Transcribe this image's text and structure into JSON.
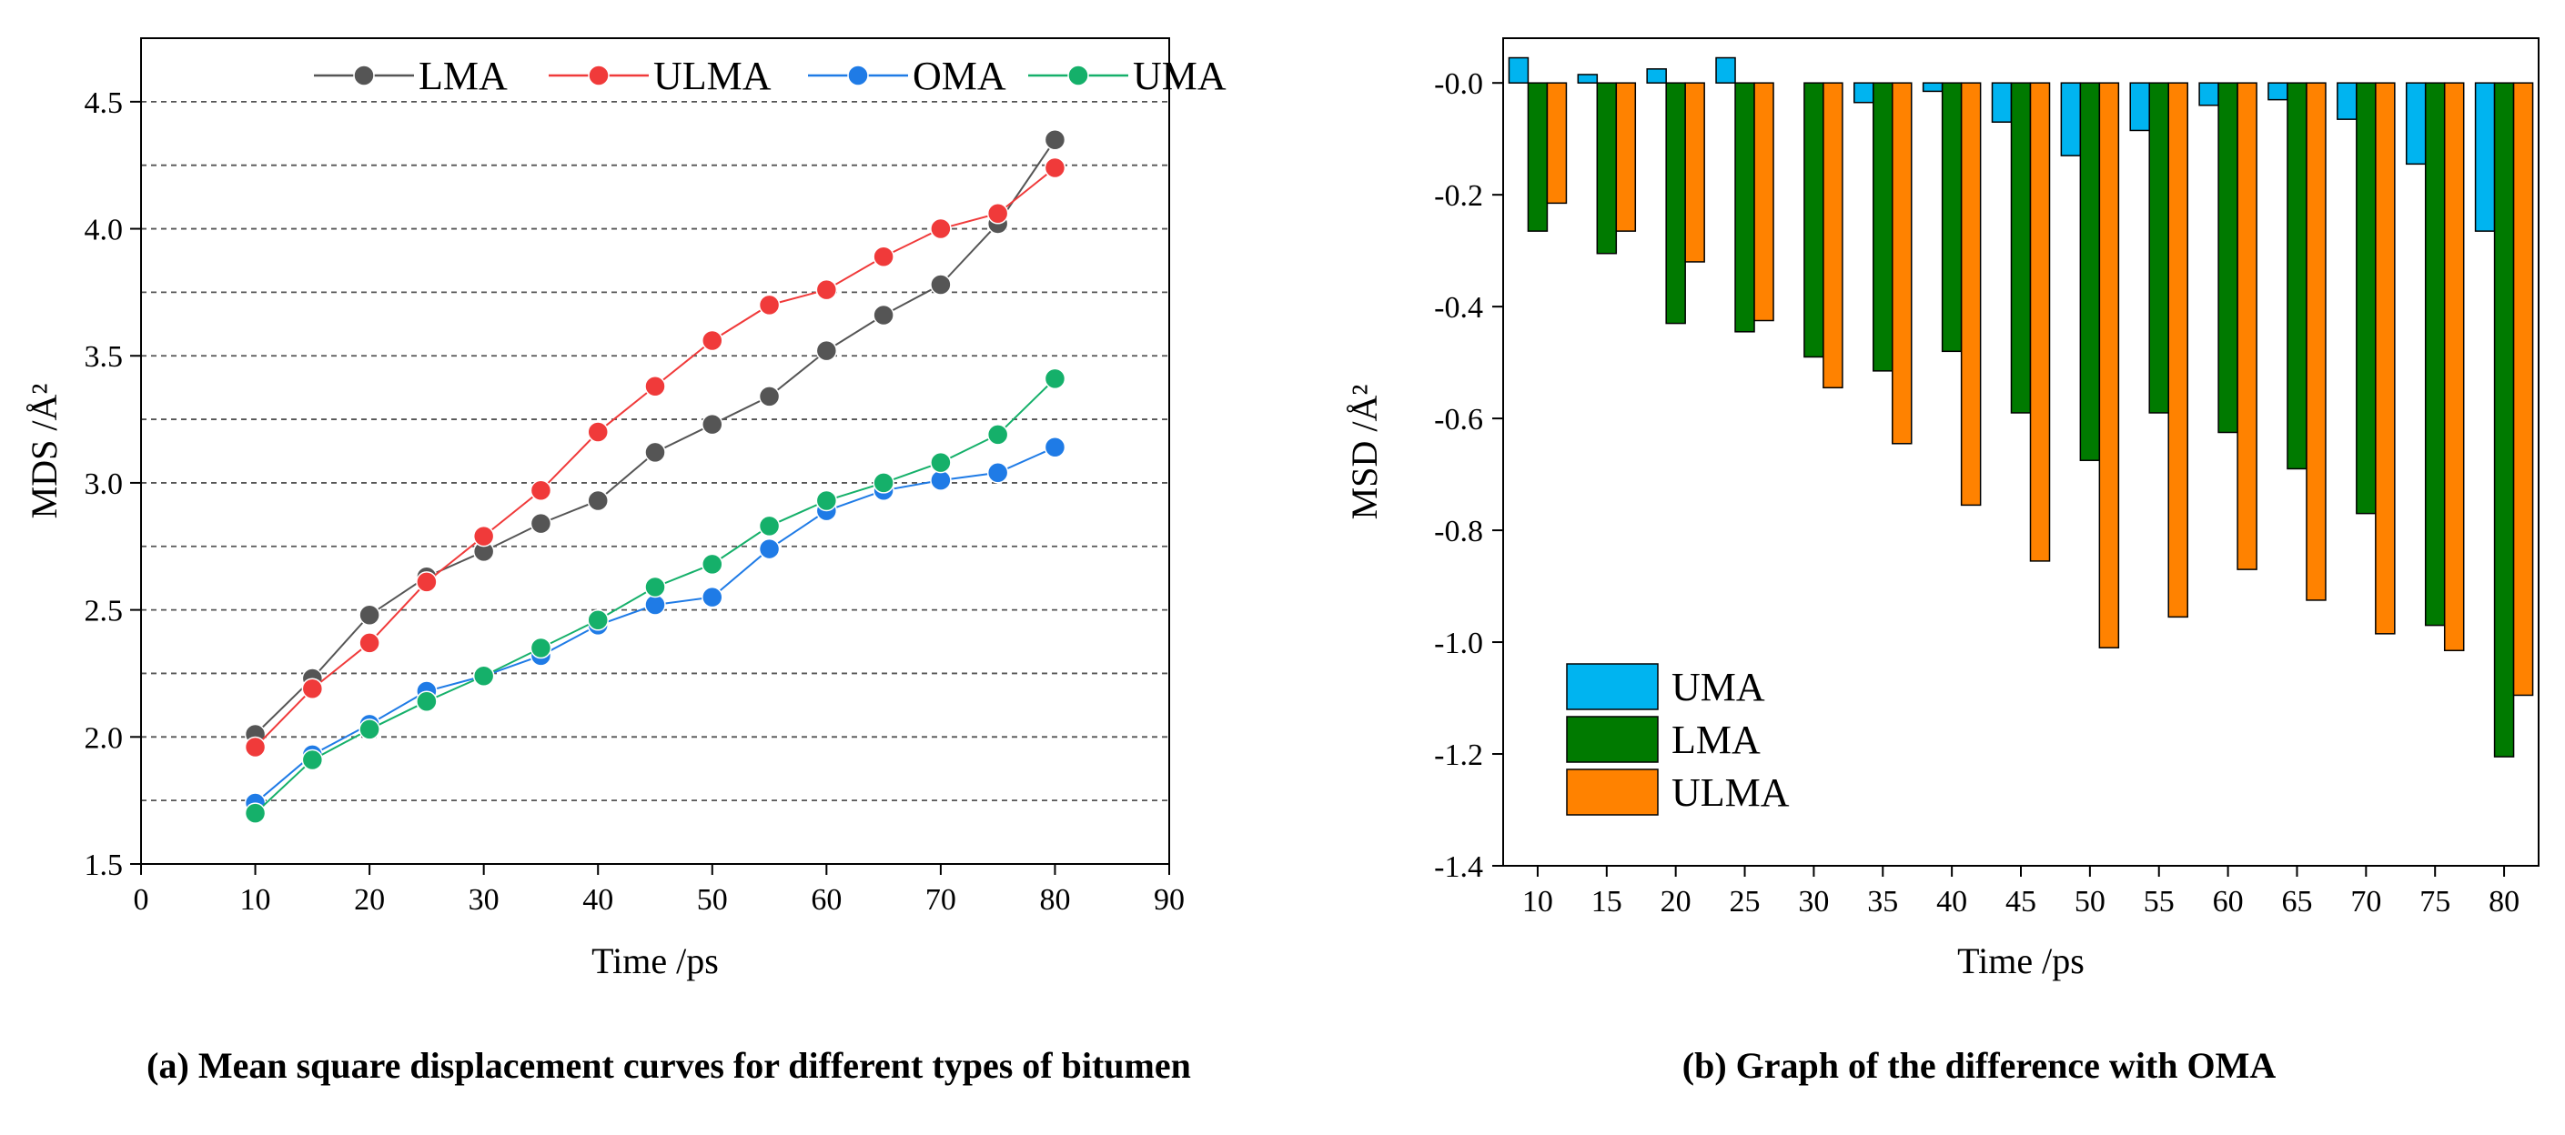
{
  "chart_data": [
    {
      "type": "line",
      "caption": "(a) Mean square displacement curves for different types of bitumen",
      "xlabel": "Time /ps",
      "ylabel": "MDS /Å²",
      "xlim": [
        0,
        90
      ],
      "ylim": [
        1.5,
        4.75
      ],
      "xticks": [
        "0",
        "10",
        "20",
        "30",
        "40",
        "50",
        "60",
        "70",
        "80",
        "90"
      ],
      "yticks": [
        "1.5",
        "2.0",
        "2.5",
        "3.0",
        "3.5",
        "4.0",
        "4.5"
      ],
      "grid": "horizontal dashed",
      "legend_position": "top",
      "x": [
        10,
        15,
        20,
        25,
        30,
        35,
        40,
        45,
        50,
        55,
        60,
        65,
        70,
        75,
        80
      ],
      "series": [
        {
          "name": "LMA",
          "color": "#555555",
          "values": [
            2.01,
            2.23,
            2.48,
            2.63,
            2.73,
            2.84,
            2.93,
            3.12,
            3.23,
            3.34,
            3.52,
            3.66,
            3.78,
            4.02,
            4.35
          ]
        },
        {
          "name": "ULMA",
          "color": "#f03a3a",
          "values": [
            1.96,
            2.19,
            2.37,
            2.61,
            2.79,
            2.97,
            3.2,
            3.38,
            3.56,
            3.7,
            3.76,
            3.89,
            4.0,
            4.06,
            4.24
          ]
        },
        {
          "name": "OMA",
          "color": "#1f7be6",
          "values": [
            1.74,
            1.93,
            2.05,
            2.18,
            2.24,
            2.32,
            2.44,
            2.52,
            2.55,
            2.74,
            2.89,
            2.97,
            3.01,
            3.04,
            3.14
          ]
        },
        {
          "name": "UMA",
          "color": "#15b06a",
          "values": [
            1.7,
            1.91,
            2.03,
            2.14,
            2.24,
            2.35,
            2.46,
            2.59,
            2.68,
            2.83,
            2.93,
            3.0,
            3.08,
            3.19,
            3.41
          ]
        }
      ]
    },
    {
      "type": "bar",
      "caption": "(b) Graph of the difference with OMA",
      "xlabel": "Time /ps",
      "ylabel": "MSD /Å²",
      "ylim": [
        -1.4,
        0.08
      ],
      "yticks": [
        "-0.0",
        "-0.2",
        "-0.4",
        "-0.6",
        "-0.8",
        "-1.0",
        "-1.2",
        "-1.4"
      ],
      "legend_position": "bottom-left",
      "categories": [
        "10",
        "15",
        "20",
        "25",
        "30",
        "35",
        "40",
        "45",
        "50",
        "55",
        "60",
        "65",
        "70",
        "75",
        "80"
      ],
      "series": [
        {
          "name": "UMA",
          "color": "#00b4f0",
          "values": [
            0.045,
            0.015,
            0.025,
            0.045,
            0.0,
            -0.035,
            -0.015,
            -0.07,
            -0.13,
            -0.085,
            -0.04,
            -0.03,
            -0.065,
            -0.145,
            -0.265
          ]
        },
        {
          "name": "LMA",
          "color": "#007a00",
          "values": [
            -0.265,
            -0.305,
            -0.43,
            -0.445,
            -0.49,
            -0.515,
            -0.48,
            -0.59,
            -0.675,
            -0.59,
            -0.625,
            -0.69,
            -0.77,
            -0.97,
            -1.205
          ]
        },
        {
          "name": "ULMA",
          "color": "#ff8200",
          "values": [
            -0.215,
            -0.265,
            -0.32,
            -0.425,
            -0.545,
            -0.645,
            -0.755,
            -0.855,
            -1.01,
            -0.955,
            -0.87,
            -0.925,
            -0.985,
            -1.015,
            -1.095
          ]
        }
      ]
    }
  ]
}
